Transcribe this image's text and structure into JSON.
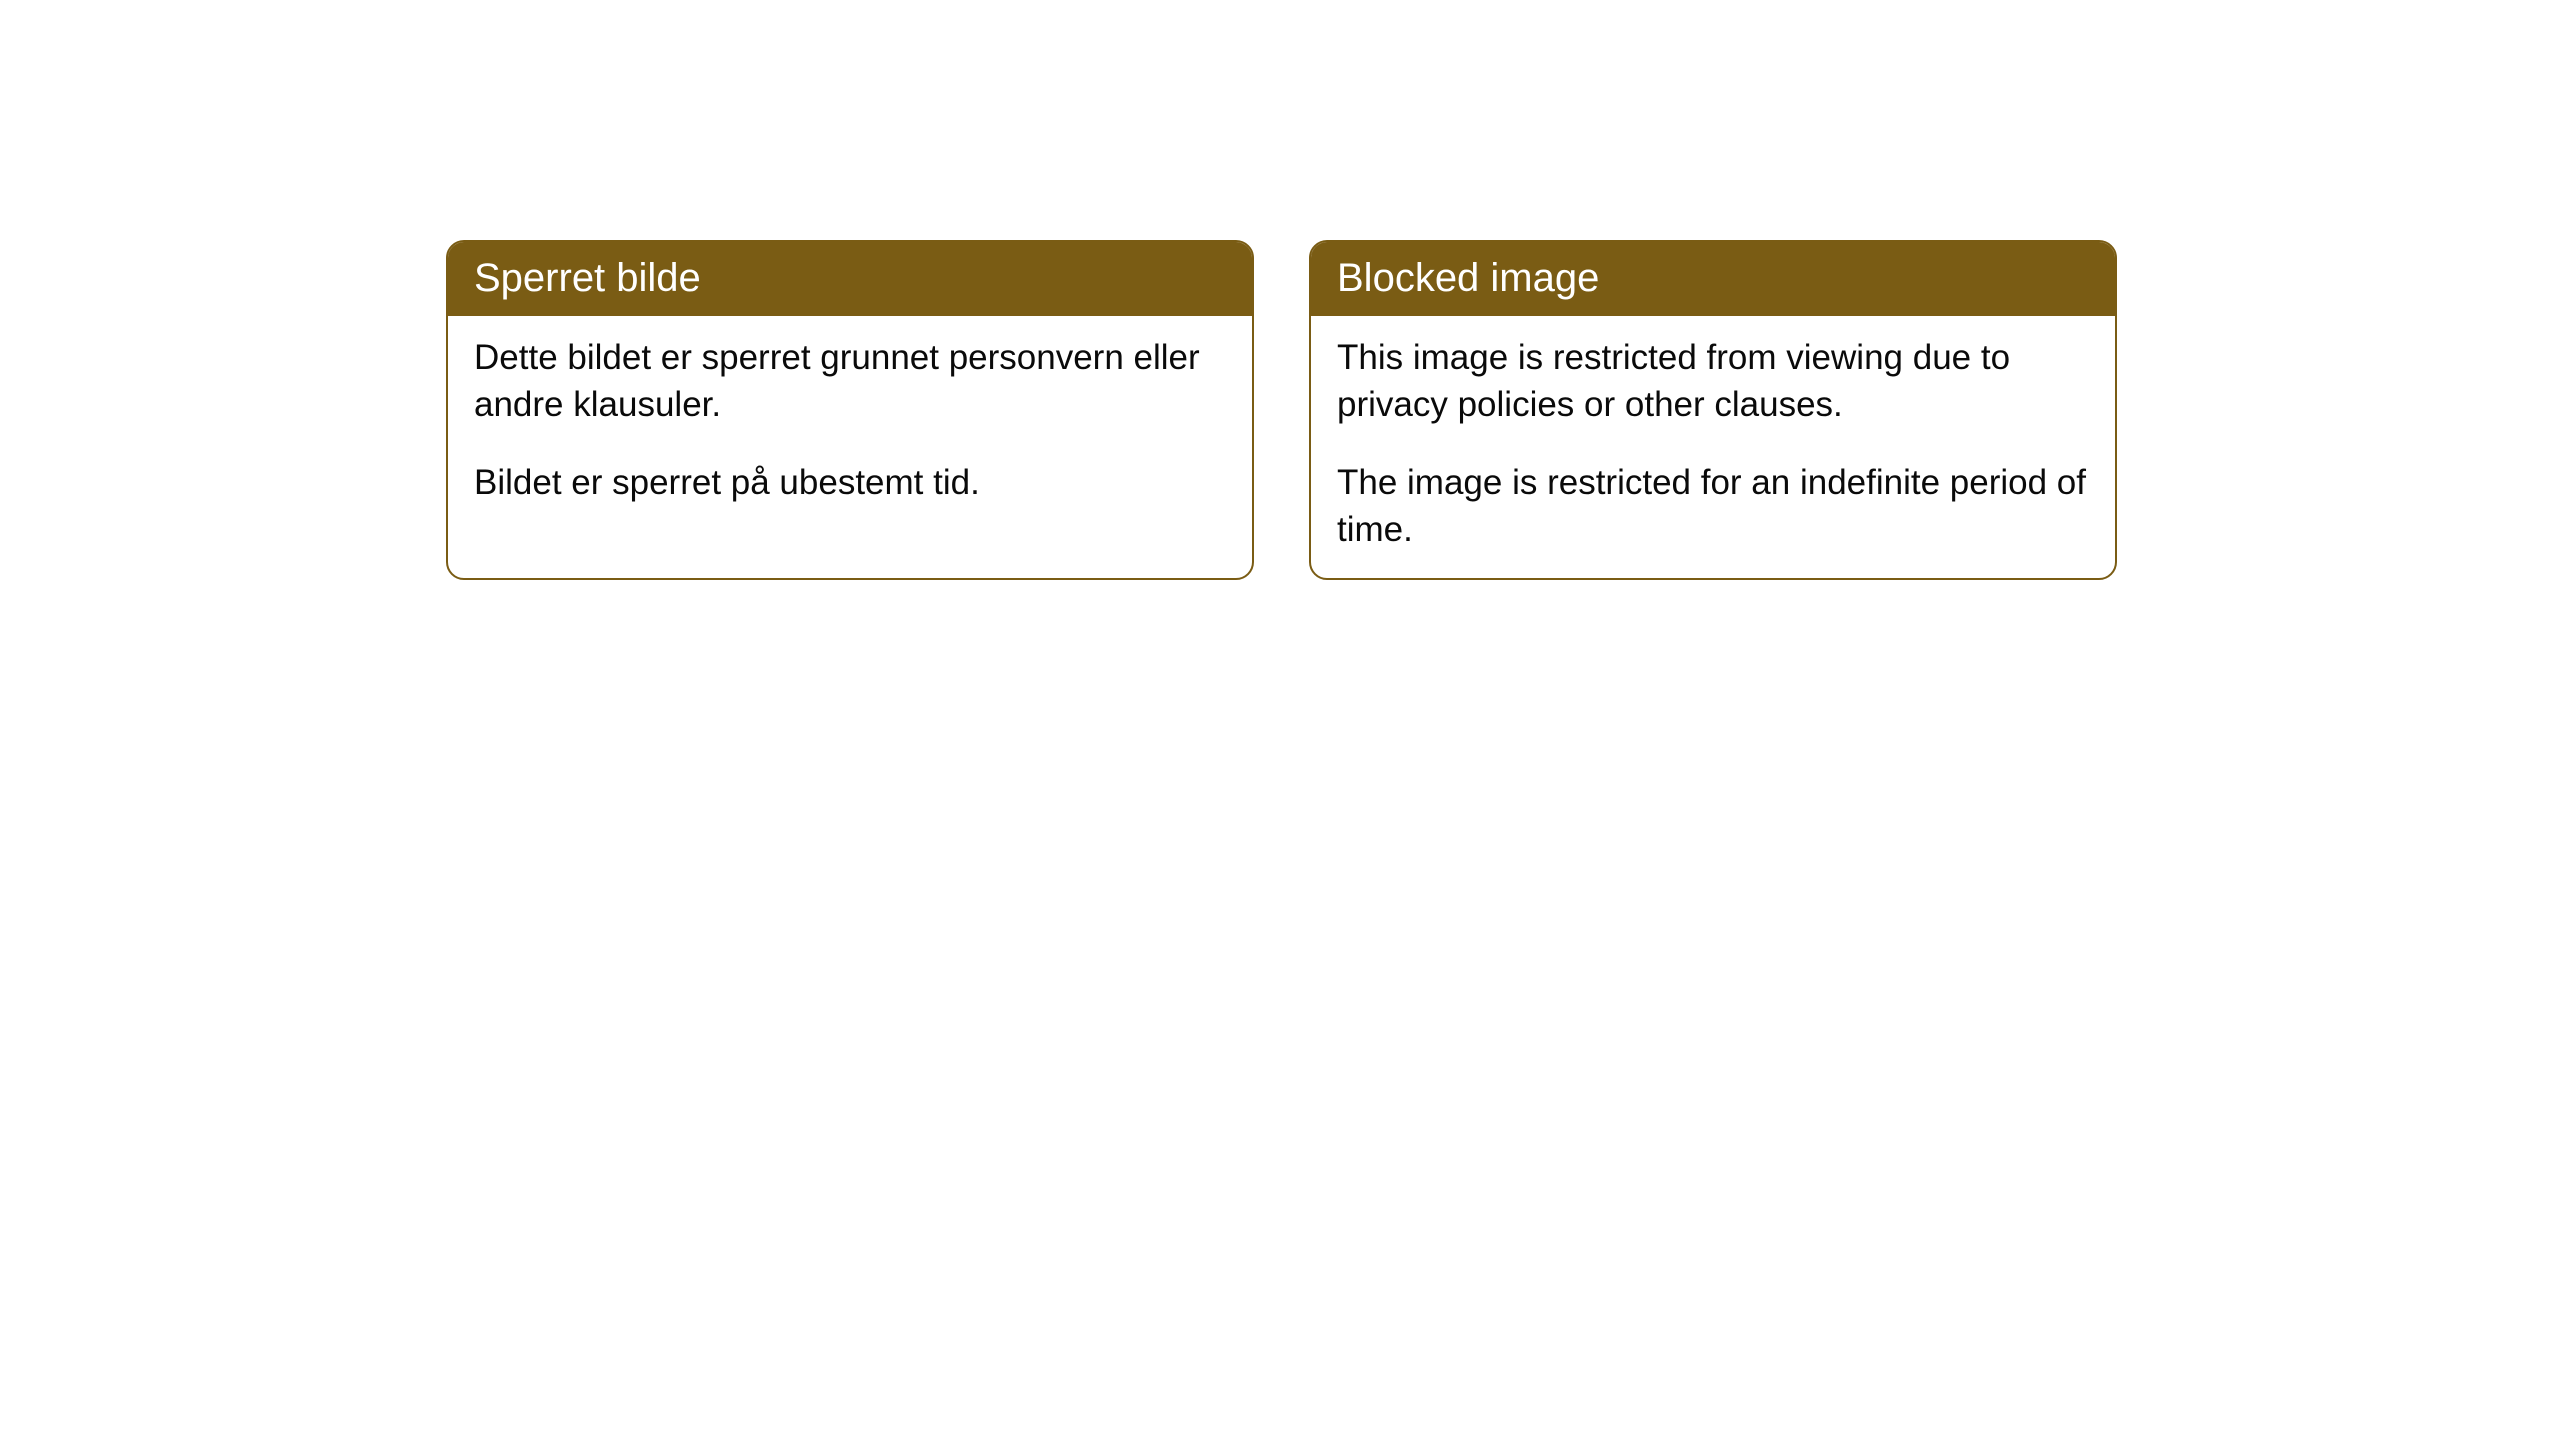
{
  "cards": [
    {
      "title": "Sperret bilde",
      "para1": "Dette bildet er sperret grunnet personvern eller andre klausuler.",
      "para2": "Bildet er sperret på ubestemt tid."
    },
    {
      "title": "Blocked image",
      "para1": "This image is restricted from viewing due to privacy policies or other clauses.",
      "para2": "The image is restricted for an indefinite period of time."
    }
  ],
  "style": {
    "header_bg": "#7a5c14",
    "header_text_color": "#ffffff",
    "border_color": "#7a5c14",
    "body_text_color": "#0a0a0a",
    "background_color": "#ffffff",
    "border_radius": 18,
    "title_fontsize": 40,
    "body_fontsize": 35
  }
}
